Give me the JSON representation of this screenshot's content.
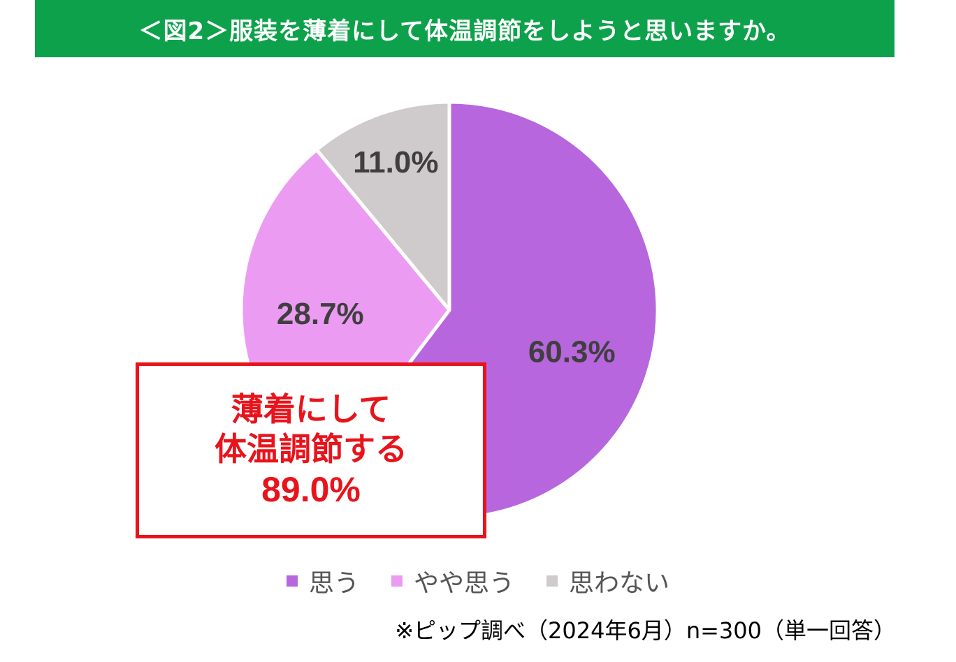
{
  "title": "＜図2＞服装を薄着にして体温調節をしようと思いますか。",
  "colors": {
    "title_bg": "#0ea14b",
    "callout": "#e8141c"
  },
  "chart_data": {
    "type": "pie",
    "start_angle_deg": 0,
    "direction": "clockwise",
    "legend_position": "bottom",
    "slices": [
      {
        "name": "思う",
        "value": 60.3,
        "label": "60.3%",
        "color": "#b766dd"
      },
      {
        "name": "やや思う",
        "value": 28.7,
        "label": "28.7%",
        "color": "#eb9cf2"
      },
      {
        "name": "思わない",
        "value": 11.0,
        "label": "11.0%",
        "color": "#cfcbcd"
      }
    ]
  },
  "callout": {
    "line1": "薄着にして",
    "line2": "体温調節する",
    "value": "89.0%"
  },
  "footnote": "※ピップ調べ（2024年6月）n=300（単一回答）"
}
